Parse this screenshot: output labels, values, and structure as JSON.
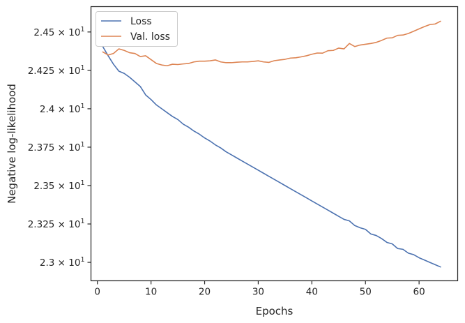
{
  "chart_data": {
    "type": "line",
    "title": "",
    "xlabel": "Epochs",
    "ylabel": "Negative log-likelihood",
    "xlim": [
      -1.2,
      67.2
    ],
    "ylim": [
      22.88,
      24.665
    ],
    "xticks": [
      0,
      10,
      20,
      30,
      40,
      50,
      60
    ],
    "yticks": [
      {
        "value": 23.0,
        "mant": "2.3",
        "base": "10",
        "exp": "1"
      },
      {
        "value": 23.25,
        "mant": "2.325",
        "base": "10",
        "exp": "1"
      },
      {
        "value": 23.5,
        "mant": "2.35",
        "base": "10",
        "exp": "1"
      },
      {
        "value": 23.75,
        "mant": "2.375",
        "base": "10",
        "exp": "1"
      },
      {
        "value": 24.0,
        "mant": "2.4",
        "base": "10",
        "exp": "1"
      },
      {
        "value": 24.25,
        "mant": "2.425",
        "base": "10",
        "exp": "1"
      },
      {
        "value": 24.5,
        "mant": "2.45",
        "base": "10",
        "exp": "1"
      }
    ],
    "grid": false,
    "legend_position": "top-left",
    "series": [
      {
        "name": "Loss",
        "color": "#4c72b0",
        "x": [
          1,
          2,
          3,
          4,
          5,
          6,
          7,
          8,
          9,
          10,
          11,
          12,
          13,
          14,
          15,
          16,
          17,
          18,
          19,
          20,
          21,
          22,
          23,
          24,
          25,
          26,
          27,
          28,
          29,
          30,
          31,
          32,
          33,
          34,
          35,
          36,
          37,
          38,
          39,
          40,
          41,
          42,
          43,
          44,
          45,
          46,
          47,
          48,
          49,
          50,
          51,
          52,
          53,
          54,
          55,
          56,
          57,
          58,
          59,
          60,
          61,
          62,
          63,
          64
        ],
        "y": [
          24.405,
          24.345,
          24.29,
          24.245,
          24.23,
          24.205,
          24.175,
          24.145,
          24.09,
          24.06,
          24.025,
          24.0,
          23.975,
          23.95,
          23.93,
          23.9,
          23.88,
          23.855,
          23.835,
          23.81,
          23.79,
          23.765,
          23.745,
          23.72,
          23.7,
          23.68,
          23.66,
          23.64,
          23.62,
          23.6,
          23.58,
          23.56,
          23.54,
          23.52,
          23.5,
          23.48,
          23.46,
          23.44,
          23.42,
          23.4,
          23.38,
          23.36,
          23.34,
          23.32,
          23.3,
          23.28,
          23.27,
          23.24,
          23.225,
          23.215,
          23.185,
          23.175,
          23.155,
          23.13,
          23.12,
          23.09,
          23.085,
          23.06,
          23.05,
          23.03,
          23.015,
          23.0,
          22.985,
          22.97
        ]
      },
      {
        "name": "Val. loss",
        "color": "#dd8452",
        "x": [
          1,
          2,
          3,
          4,
          5,
          6,
          7,
          8,
          9,
          10,
          11,
          12,
          13,
          14,
          15,
          16,
          17,
          18,
          19,
          20,
          21,
          22,
          23,
          24,
          25,
          26,
          27,
          28,
          29,
          30,
          31,
          32,
          33,
          34,
          35,
          36,
          37,
          38,
          39,
          40,
          41,
          42,
          43,
          44,
          45,
          46,
          47,
          48,
          49,
          50,
          51,
          52,
          53,
          54,
          55,
          56,
          57,
          58,
          59,
          60,
          61,
          62,
          63,
          64
        ],
        "y": [
          24.37,
          24.35,
          24.36,
          24.39,
          24.38,
          24.365,
          24.36,
          24.34,
          24.345,
          24.32,
          24.295,
          24.285,
          24.28,
          24.29,
          24.288,
          24.292,
          24.295,
          24.305,
          24.31,
          24.31,
          24.312,
          24.318,
          24.305,
          24.3,
          24.3,
          24.303,
          24.305,
          24.305,
          24.308,
          24.312,
          24.305,
          24.302,
          24.313,
          24.318,
          24.322,
          24.33,
          24.332,
          24.338,
          24.345,
          24.355,
          24.363,
          24.362,
          24.378,
          24.38,
          24.395,
          24.39,
          24.425,
          24.405,
          24.415,
          24.42,
          24.425,
          24.432,
          24.445,
          24.46,
          24.462,
          24.478,
          24.48,
          24.49,
          24.505,
          24.52,
          24.535,
          24.548,
          24.552,
          24.57
        ]
      }
    ]
  }
}
